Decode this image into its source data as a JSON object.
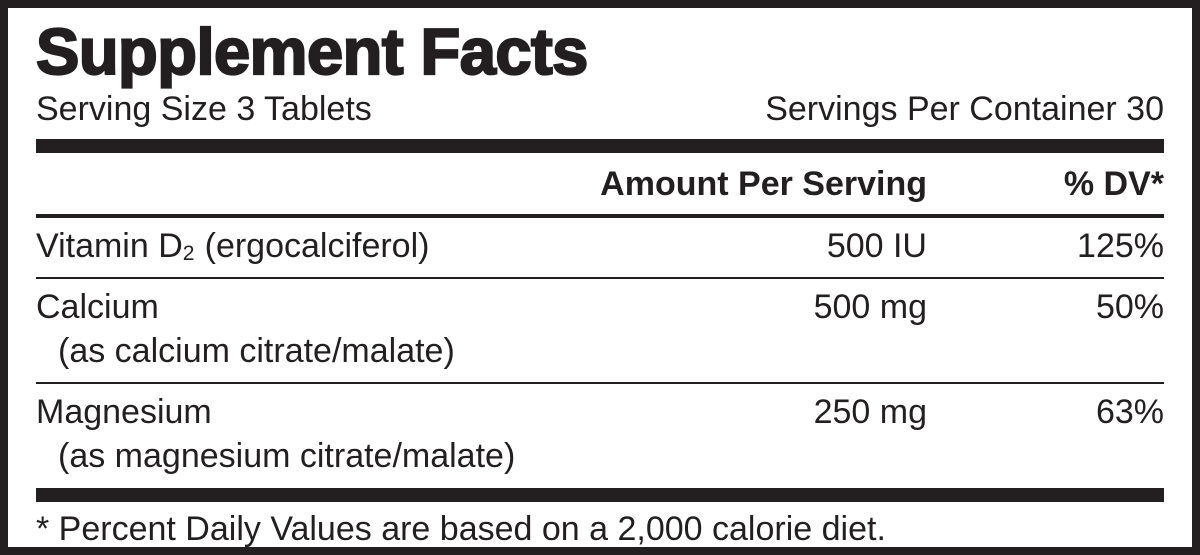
{
  "title": "Supplement Facts",
  "serving_size": "Serving Size 3 Tablets",
  "servings_per_container": "Servings Per Container 30",
  "header": {
    "amount_col": "Amount Per Serving",
    "dv_col": "% DV*"
  },
  "rows": [
    {
      "name": "Vitamin D",
      "name_sub": "2",
      "name_note": " (ergocalciferol)",
      "detail": "",
      "amount": "500 IU",
      "dv": "125%"
    },
    {
      "name": "Calcium",
      "name_sub": "",
      "name_note": "",
      "detail": "(as calcium citrate/malate)",
      "amount": "500 mg",
      "dv": "50%"
    },
    {
      "name": "Magnesium",
      "name_sub": "",
      "name_note": "",
      "detail": "(as magnesium citrate/malate)",
      "amount": "250 mg",
      "dv": "63%"
    }
  ],
  "footnote": "* Percent Daily Values are based on a 2,000 calorie diet.",
  "colors": {
    "ink": "#231f20",
    "background": "#ffffff"
  }
}
